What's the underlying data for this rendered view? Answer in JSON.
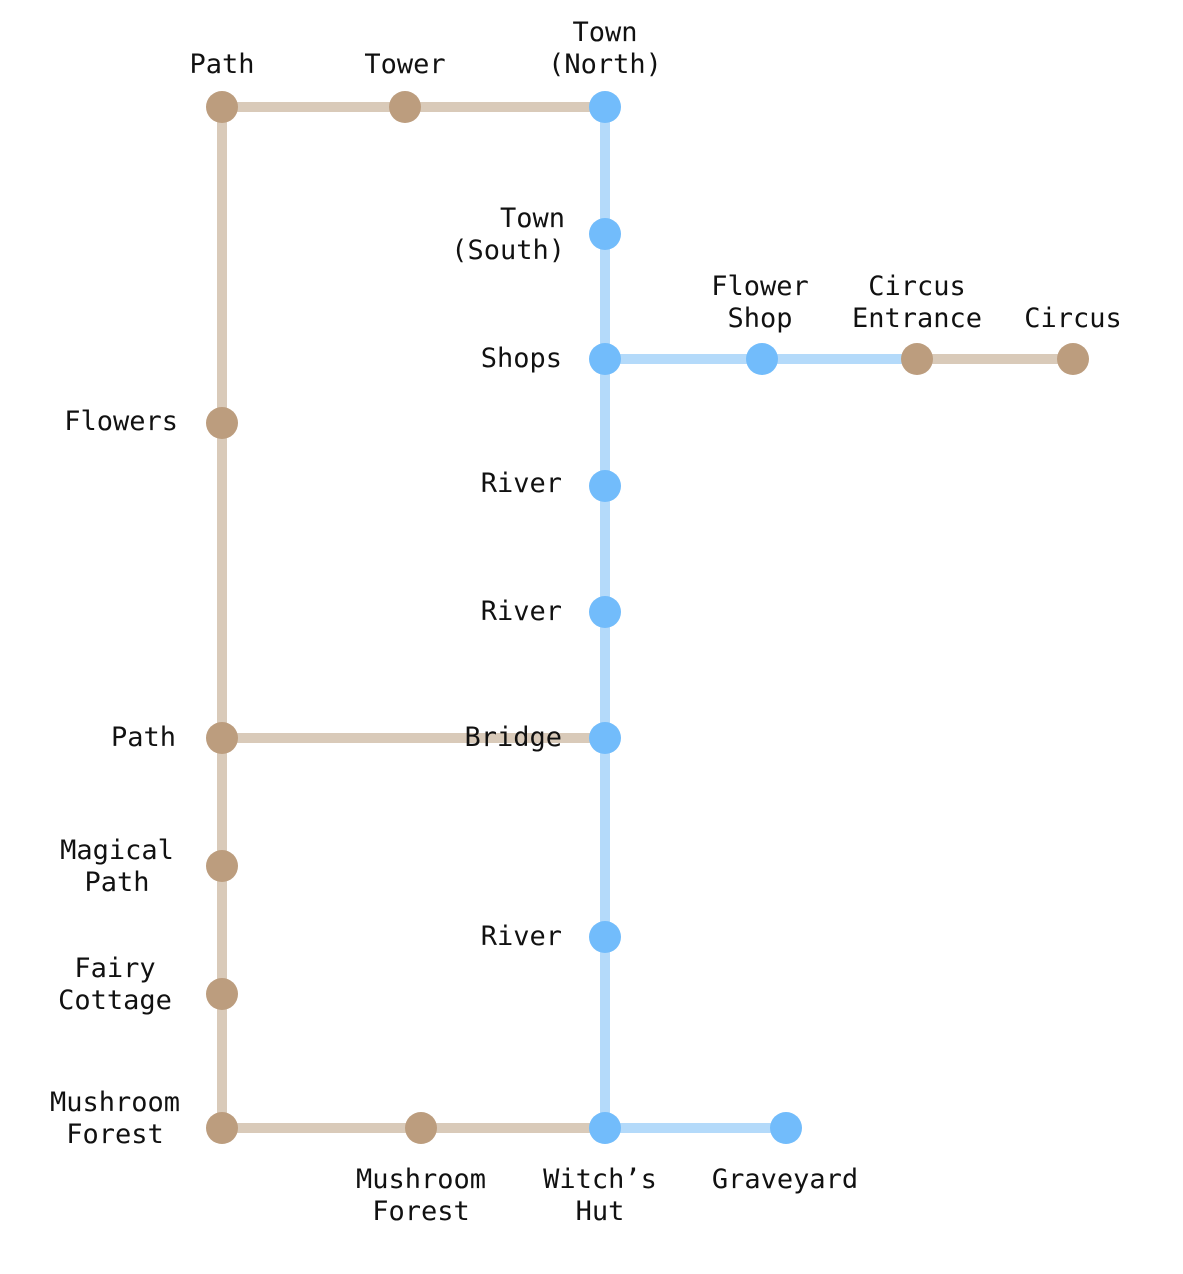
{
  "colors": {
    "land_line": "#d9cab9",
    "land_node": "#bc9d7e",
    "water_line": "#b4dafa",
    "water_node": "#72bcfb",
    "text": "#111111",
    "background": "#ffffff"
  },
  "nodes": [
    {
      "id": "path-top",
      "lines": [
        "Path"
      ],
      "type": "land"
    },
    {
      "id": "tower",
      "lines": [
        "Tower"
      ],
      "type": "land"
    },
    {
      "id": "town-north",
      "lines": [
        "Town",
        "(North)"
      ],
      "type": "water"
    },
    {
      "id": "town-south",
      "lines": [
        "Town",
        "(South)"
      ],
      "type": "water"
    },
    {
      "id": "shops",
      "lines": [
        "Shops"
      ],
      "type": "water"
    },
    {
      "id": "flower-shop",
      "lines": [
        "Flower",
        "Shop"
      ],
      "type": "water"
    },
    {
      "id": "circus-entrance",
      "lines": [
        "Circus",
        "Entrance"
      ],
      "type": "land"
    },
    {
      "id": "circus",
      "lines": [
        "Circus"
      ],
      "type": "land"
    },
    {
      "id": "flowers",
      "lines": [
        "Flowers"
      ],
      "type": "land"
    },
    {
      "id": "river-1",
      "lines": [
        "River"
      ],
      "type": "water"
    },
    {
      "id": "river-2",
      "lines": [
        "River"
      ],
      "type": "water"
    },
    {
      "id": "path-mid",
      "lines": [
        "Path"
      ],
      "type": "land"
    },
    {
      "id": "bridge",
      "lines": [
        "Bridge"
      ],
      "type": "water"
    },
    {
      "id": "magical-path",
      "lines": [
        "Magical",
        "Path"
      ],
      "type": "land"
    },
    {
      "id": "river-3",
      "lines": [
        "River"
      ],
      "type": "water"
    },
    {
      "id": "fairy-cottage",
      "lines": [
        "Fairy",
        "Cottage"
      ],
      "type": "land"
    },
    {
      "id": "mushroom-forest-left",
      "lines": [
        "Mushroom",
        "Forest"
      ],
      "type": "land"
    },
    {
      "id": "mushroom-forest-bottom",
      "lines": [
        "Mushroom",
        "Forest"
      ],
      "type": "land"
    },
    {
      "id": "witchs-hut",
      "lines": [
        "Witch’s",
        "Hut"
      ],
      "type": "water"
    },
    {
      "id": "graveyard",
      "lines": [
        "Graveyard"
      ],
      "type": "water"
    }
  ],
  "edges": [
    {
      "from": "path-top",
      "to": "tower",
      "type": "land"
    },
    {
      "from": "tower",
      "to": "town-north",
      "type": "land"
    },
    {
      "from": "town-north",
      "to": "town-south",
      "type": "water"
    },
    {
      "from": "town-south",
      "to": "shops",
      "type": "water"
    },
    {
      "from": "shops",
      "to": "flower-shop",
      "type": "water"
    },
    {
      "from": "flower-shop",
      "to": "circus-entrance",
      "type": "water"
    },
    {
      "from": "circus-entrance",
      "to": "circus",
      "type": "land"
    },
    {
      "from": "shops",
      "to": "river-1",
      "type": "water"
    },
    {
      "from": "river-1",
      "to": "river-2",
      "type": "water"
    },
    {
      "from": "river-2",
      "to": "bridge",
      "type": "water"
    },
    {
      "from": "bridge",
      "to": "river-3",
      "type": "water"
    },
    {
      "from": "river-3",
      "to": "witchs-hut",
      "type": "water"
    },
    {
      "from": "witchs-hut",
      "to": "graveyard",
      "type": "water"
    },
    {
      "from": "path-top",
      "to": "flowers",
      "type": "land"
    },
    {
      "from": "flowers",
      "to": "path-mid",
      "type": "land"
    },
    {
      "from": "path-mid",
      "to": "bridge",
      "type": "land"
    },
    {
      "from": "path-mid",
      "to": "magical-path",
      "type": "land"
    },
    {
      "from": "magical-path",
      "to": "fairy-cottage",
      "type": "land"
    },
    {
      "from": "fairy-cottage",
      "to": "mushroom-forest-left",
      "type": "land"
    },
    {
      "from": "mushroom-forest-left",
      "to": "mushroom-forest-bottom",
      "type": "land"
    },
    {
      "from": "mushroom-forest-bottom",
      "to": "witchs-hut",
      "type": "land"
    }
  ]
}
